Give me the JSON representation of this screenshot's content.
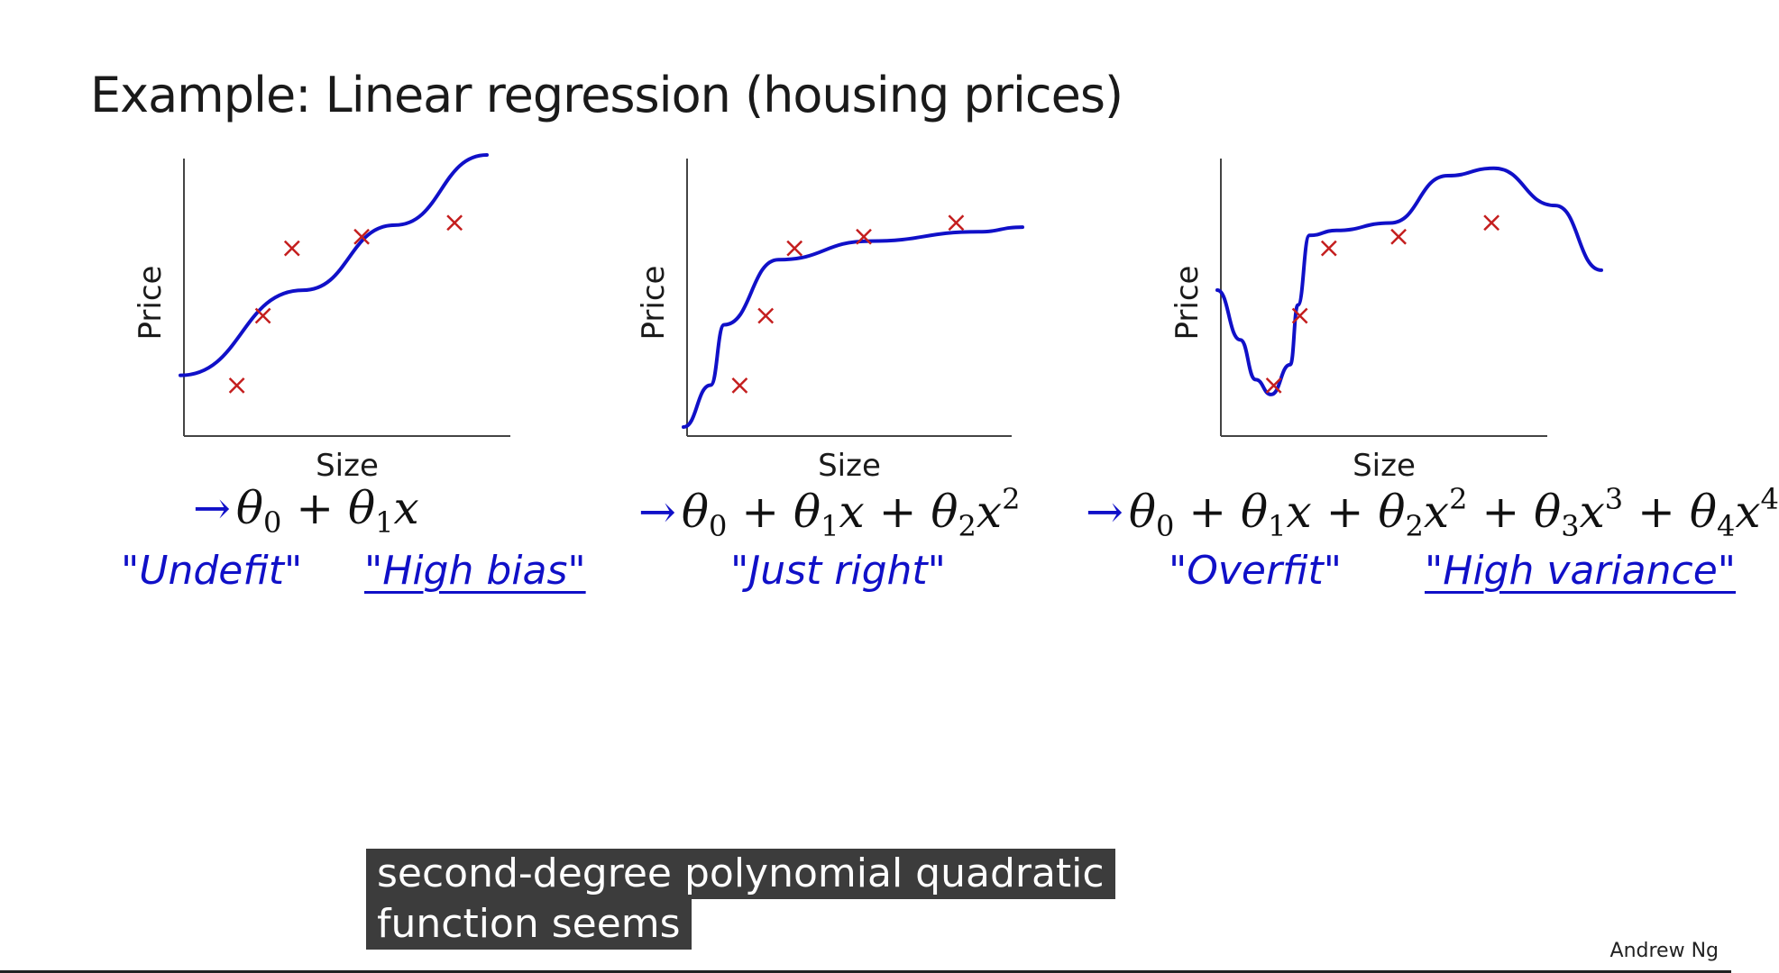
{
  "slide": {
    "title": "Example: Linear regression (housing prices)",
    "author": "Andrew Ng",
    "caption_lines": [
      "second-degree polynomial quadratic",
      "function seems"
    ]
  },
  "colors": {
    "curve": "#1010c8",
    "marker": "#c41e1e",
    "axis": "#444444",
    "caption_bg": "#3c3c3c"
  },
  "chart_data": [
    {
      "type": "scatter",
      "xlabel": "Size",
      "ylabel": "Price",
      "fit": "linear",
      "points": [
        {
          "x": 0.12,
          "y": 0.14
        },
        {
          "x": 0.21,
          "y": 0.44
        },
        {
          "x": 0.31,
          "y": 0.73
        },
        {
          "x": 0.55,
          "y": 0.78
        },
        {
          "x": 0.87,
          "y": 0.84
        }
      ],
      "fit_curve": [
        [
          0.0,
          0.12
        ],
        [
          0.4,
          0.46
        ],
        [
          0.7,
          0.72
        ],
        [
          1.0,
          1.0
        ]
      ],
      "formula": {
        "arrow": "→",
        "html": "θ<sub>0</sub> + θ<sub>1</sub>x"
      },
      "labels": [
        "\"Undefit\"",
        "\"High bias\""
      ]
    },
    {
      "type": "scatter",
      "xlabel": "Size",
      "ylabel": "Price",
      "fit": "quadratic",
      "points": [
        {
          "x": 0.12,
          "y": 0.14
        },
        {
          "x": 0.21,
          "y": 0.44
        },
        {
          "x": 0.31,
          "y": 0.73
        },
        {
          "x": 0.55,
          "y": 0.78
        },
        {
          "x": 0.87,
          "y": 0.84
        }
      ],
      "fit_curve": [
        [
          0.0,
          0.0
        ],
        [
          0.08,
          0.18
        ],
        [
          0.12,
          0.44
        ],
        [
          0.28,
          0.72
        ],
        [
          0.55,
          0.8
        ],
        [
          0.87,
          0.84
        ],
        [
          1.0,
          0.86
        ]
      ],
      "formula": {
        "arrow": "→",
        "html": "θ<sub>0</sub> + θ<sub>1</sub>x + θ<sub>2</sub>x<sup>2</sup>"
      },
      "labels": [
        "\"Just right\""
      ]
    },
    {
      "type": "scatter",
      "xlabel": "Size",
      "ylabel": "Price",
      "fit": "4th-order polynomial",
      "points": [
        {
          "x": 0.12,
          "y": 0.14
        },
        {
          "x": 0.21,
          "y": 0.44
        },
        {
          "x": 0.31,
          "y": 0.73
        },
        {
          "x": 0.55,
          "y": 0.78
        },
        {
          "x": 0.87,
          "y": 0.84
        }
      ],
      "fit_curve": [
        [
          0.0,
          0.5
        ],
        [
          0.06,
          0.3
        ],
        [
          0.1,
          0.14
        ],
        [
          0.14,
          0.08
        ],
        [
          0.19,
          0.2
        ],
        [
          0.21,
          0.44
        ],
        [
          0.24,
          0.72
        ],
        [
          0.31,
          0.74
        ],
        [
          0.45,
          0.77
        ],
        [
          0.6,
          0.96
        ],
        [
          0.72,
          0.99
        ],
        [
          0.88,
          0.84
        ],
        [
          1.0,
          0.58
        ]
      ],
      "formula": {
        "arrow": "→",
        "html": "θ<sub>0</sub> + θ<sub>1</sub>x + θ<sub>2</sub>x<sup>2</sup> + θ<sub>3</sub>x<sup>3</sup> + θ<sub>4</sub>x<sup>4</sup>"
      },
      "labels": [
        "\"Overfit\"",
        "\"High variance\""
      ]
    }
  ]
}
